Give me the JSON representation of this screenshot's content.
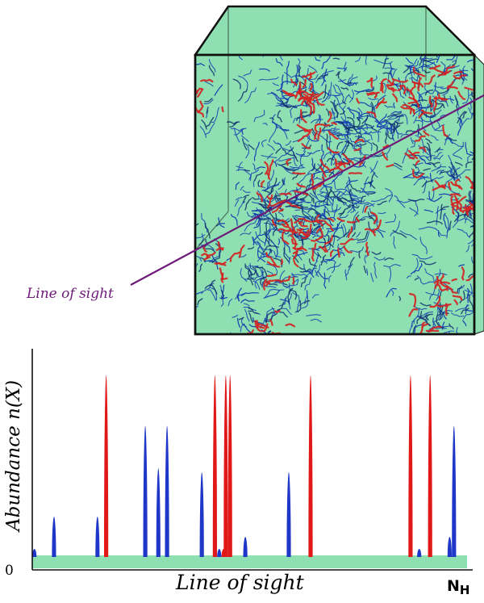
{
  "labels": {
    "los_cube": "Line of sight",
    "y_axis": "Abundance n(X)",
    "x_axis": "Line of sight",
    "origin": "0",
    "nh_main": "N",
    "nh_sub": "H"
  },
  "colors": {
    "background": "#ffffff",
    "cube_fill": "#8ee0b2",
    "cube_edge": "#111111",
    "structure_blue": "#1840b0",
    "structure_red": "#d42020",
    "structure_dark": "#0b2a6a",
    "los_line": "#6e1a78",
    "axis": "#111111",
    "baseline_band": "#8ee0b2",
    "peak_blue": "#1f37c8",
    "peak_red": "#e01818"
  },
  "icons": {
    "cube": "simulation-cube-icon",
    "line_of_sight": "line-of-sight-arrow"
  },
  "chart_data": {
    "type": "line",
    "title": "",
    "xlabel": "Line of sight",
    "ylabel": "Abundance n(X)",
    "x_end_label": "NH",
    "y_origin_label": "0",
    "xlim": [
      0,
      1
    ],
    "ylim": [
      0,
      1
    ],
    "grid": false,
    "legend": "none",
    "series": [
      {
        "color": "blue",
        "peaks": [
          {
            "x": 0.005,
            "y": 0.04
          },
          {
            "x": 0.05,
            "y": 0.2
          },
          {
            "x": 0.15,
            "y": 0.2
          },
          {
            "x": 0.26,
            "y": 0.65
          },
          {
            "x": 0.29,
            "y": 0.44
          },
          {
            "x": 0.31,
            "y": 0.65
          },
          {
            "x": 0.39,
            "y": 0.42
          },
          {
            "x": 0.43,
            "y": 0.04
          },
          {
            "x": 0.49,
            "y": 0.1
          },
          {
            "x": 0.59,
            "y": 0.42
          },
          {
            "x": 0.89,
            "y": 0.04
          },
          {
            "x": 0.96,
            "y": 0.1
          },
          {
            "x": 0.97,
            "y": 0.65
          }
        ]
      },
      {
        "color": "red",
        "peaks": [
          {
            "x": 0.17,
            "y": 0.9
          },
          {
            "x": 0.42,
            "y": 0.9
          },
          {
            "x": 0.445,
            "y": 0.9
          },
          {
            "x": 0.455,
            "y": 0.9
          },
          {
            "x": 0.64,
            "y": 0.9
          },
          {
            "x": 0.87,
            "y": 0.9
          },
          {
            "x": 0.915,
            "y": 0.9
          },
          {
            "x": 0.44,
            "y": 0.04
          }
        ]
      }
    ]
  }
}
